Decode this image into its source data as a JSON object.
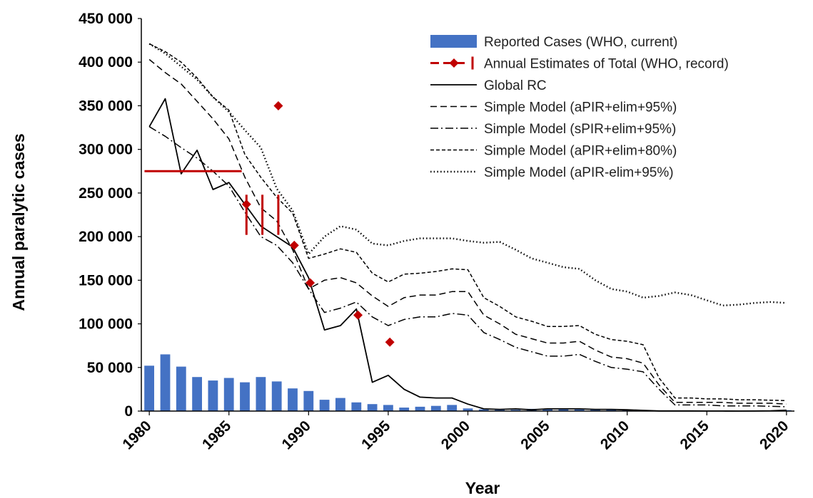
{
  "chart_data": {
    "type": "line",
    "title": "",
    "xlabel": "Year",
    "ylabel": "Annual paralytic cases",
    "xlim": [
      1980,
      2021
    ],
    "ylim": [
      0,
      450000
    ],
    "x_ticks": [
      "1980",
      "1985",
      "1990",
      "1995",
      "2000",
      "2005",
      "2010",
      "2015",
      "2020"
    ],
    "y_ticks": [
      "0",
      "50 000",
      "100 000",
      "150 000",
      "200 000",
      "250 000",
      "300 000",
      "350 000",
      "400 000",
      "450 000"
    ],
    "grid": false,
    "legend_position": "top-right",
    "legend": [
      {
        "label": "Reported Cases (WHO, current)",
        "series": "reported"
      },
      {
        "label": "Annual Estimates of Total (WHO, record)",
        "series": "estimates"
      },
      {
        "label": "Global RC",
        "series": "global_rc"
      },
      {
        "label": "Simple Model (aPIR+elim+95%)",
        "series": "apir95"
      },
      {
        "label": "Simple Model (sPIR+elim+95%)",
        "series": "spir95"
      },
      {
        "label": "Simple Model (aPIR+elim+80%)",
        "series": "apir80"
      },
      {
        "label": "Simple Model (aPIR-elim+95%)",
        "series": "apir_noelim95"
      }
    ],
    "bars": {
      "key": "reported",
      "color": "#4472C4",
      "x": [
        1980,
        1981,
        1982,
        1983,
        1984,
        1985,
        1986,
        1987,
        1988,
        1989,
        1990,
        1991,
        1992,
        1993,
        1994,
        1995,
        1996,
        1997,
        1998,
        1999,
        2000,
        2001,
        2002,
        2003,
        2004,
        2005,
        2006,
        2007,
        2008,
        2009,
        2010,
        2011,
        2012,
        2013,
        2014,
        2015,
        2016,
        2017,
        2018,
        2019,
        2020
      ],
      "values": [
        52000,
        65000,
        51000,
        39000,
        35000,
        38000,
        33000,
        39000,
        34000,
        26000,
        23000,
        13000,
        15000,
        10000,
        8000,
        7000,
        4000,
        5000,
        6000,
        7000,
        3000,
        2000,
        2000,
        1500,
        2500,
        2500,
        2500,
        2000,
        1800,
        1600,
        1300,
        700,
        250,
        400,
        350,
        100,
        40,
        20,
        30,
        180,
        1100
      ]
    },
    "estimates": {
      "key": "estimates",
      "color": "#C00000",
      "range_line": {
        "x": [
          1980,
          1985.8
        ],
        "y": 275000
      },
      "interval_bars": [
        {
          "x": 1986.1,
          "low": 202000,
          "high": 248000
        },
        {
          "x": 1987.1,
          "low": 202000,
          "high": 248000
        },
        {
          "x": 1988.1,
          "low": 202000,
          "high": 248000
        }
      ],
      "points": [
        {
          "x": 1986.1,
          "y": 237000
        },
        {
          "x": 1988.1,
          "y": 350000
        },
        {
          "x": 1989.1,
          "y": 190000
        },
        {
          "x": 1990.1,
          "y": 147000
        },
        {
          "x": 1993.1,
          "y": 110000
        },
        {
          "x": 1995.1,
          "y": 79000
        }
      ]
    },
    "series": [
      {
        "key": "global_rc",
        "style": "solid",
        "x": [
          1980,
          1981,
          1982,
          1983,
          1984,
          1985,
          1986,
          1987,
          1988,
          1989,
          1990,
          1991,
          1992,
          1993,
          1994,
          1995,
          1996,
          1997,
          1998,
          1999,
          2000,
          2001,
          2002,
          2003,
          2004,
          2005,
          2006,
          2007,
          2008,
          2009,
          2010,
          2011,
          2012,
          2013,
          2014,
          2015,
          2016,
          2017,
          2018,
          2019,
          2020
        ],
        "values": [
          326000,
          358000,
          272000,
          299000,
          254000,
          262000,
          237000,
          212000,
          200000,
          188000,
          153000,
          93000,
          98000,
          117000,
          33000,
          41000,
          25000,
          16000,
          15000,
          15000,
          8000,
          2500,
          2000,
          2500,
          1500,
          2500,
          2500,
          2500,
          2000,
          2000,
          1500,
          800,
          200,
          200,
          200,
          100,
          50,
          30,
          50,
          300,
          1000
        ]
      },
      {
        "key": "apir95",
        "style": "dashed",
        "x": [
          1980,
          1981,
          1982,
          1983,
          1984,
          1985,
          1986,
          1987,
          1988,
          1989,
          1990,
          1991,
          1992,
          1993,
          1994,
          1995,
          1996,
          1997,
          1998,
          1999,
          2000,
          2001,
          2002,
          2003,
          2004,
          2005,
          2006,
          2007,
          2008,
          2009,
          2010,
          2011,
          2012,
          2013,
          2014,
          2015,
          2016,
          2017,
          2018,
          2019,
          2020
        ],
        "values": [
          403000,
          388000,
          375000,
          355000,
          335000,
          312000,
          268000,
          233000,
          218000,
          185000,
          140000,
          150000,
          153000,
          147000,
          132000,
          120000,
          130000,
          133000,
          133000,
          137000,
          137000,
          110000,
          100000,
          88000,
          83000,
          78000,
          78000,
          80000,
          70000,
          62000,
          60000,
          55000,
          30000,
          10000,
          10000,
          10000,
          10000,
          9000,
          9000,
          9000,
          8000
        ]
      },
      {
        "key": "spir95",
        "style": "dashdot",
        "x": [
          1980,
          1981,
          1982,
          1983,
          1984,
          1985,
          1986,
          1987,
          1988,
          1989,
          1990,
          1991,
          1992,
          1993,
          1994,
          1995,
          1996,
          1997,
          1998,
          1999,
          2000,
          2001,
          2002,
          2003,
          2004,
          2005,
          2006,
          2007,
          2008,
          2009,
          2010,
          2011,
          2012,
          2013,
          2014,
          2015,
          2016,
          2017,
          2018,
          2019,
          2020
        ],
        "values": [
          326000,
          315000,
          302000,
          290000,
          275000,
          258000,
          228000,
          200000,
          190000,
          170000,
          140000,
          113000,
          118000,
          125000,
          108000,
          98000,
          105000,
          108000,
          108000,
          112000,
          110000,
          90000,
          82000,
          73000,
          68000,
          63000,
          63000,
          65000,
          57000,
          50000,
          48000,
          45000,
          25000,
          7000,
          7000,
          7000,
          6000,
          6000,
          6000,
          5500,
          5000
        ]
      },
      {
        "key": "apir80",
        "style": "shortdash",
        "x": [
          1980,
          1981,
          1982,
          1983,
          1984,
          1985,
          1986,
          1987,
          1988,
          1989,
          1990,
          1991,
          1992,
          1993,
          1994,
          1995,
          1996,
          1997,
          1998,
          1999,
          2000,
          2001,
          2002,
          2003,
          2004,
          2005,
          2006,
          2007,
          2008,
          2009,
          2010,
          2011,
          2012,
          2013,
          2014,
          2015,
          2016,
          2017,
          2018,
          2019,
          2020
        ],
        "values": [
          421000,
          412000,
          400000,
          382000,
          360000,
          345000,
          294000,
          268000,
          245000,
          227000,
          175000,
          180000,
          186000,
          182000,
          158000,
          148000,
          157000,
          158000,
          160000,
          163000,
          162000,
          130000,
          120000,
          108000,
          103000,
          97000,
          97000,
          98000,
          88000,
          82000,
          80000,
          76000,
          38000,
          15000,
          15000,
          14000,
          14000,
          13000,
          13000,
          12500,
          12000
        ]
      },
      {
        "key": "apir_noelim95",
        "style": "dotted",
        "x": [
          1980,
          1981,
          1982,
          1983,
          1984,
          1985,
          1986,
          1987,
          1988,
          1989,
          1990,
          1991,
          1992,
          1993,
          1994,
          1995,
          1996,
          1997,
          1998,
          1999,
          2000,
          2001,
          2002,
          2003,
          2004,
          2005,
          2006,
          2007,
          2008,
          2009,
          2010,
          2011,
          2012,
          2013,
          2014,
          2015,
          2016,
          2017,
          2018,
          2019,
          2020
        ],
        "values": [
          421000,
          410000,
          395000,
          380000,
          360000,
          343000,
          322000,
          302000,
          255000,
          230000,
          180000,
          200000,
          212000,
          208000,
          192000,
          190000,
          195000,
          198000,
          198000,
          198000,
          195000,
          193000,
          194000,
          185000,
          175000,
          170000,
          165000,
          163000,
          150000,
          140000,
          137000,
          130000,
          132000,
          136000,
          133000,
          127000,
          121000,
          122000,
          124000,
          125000,
          124000
        ]
      }
    ]
  }
}
